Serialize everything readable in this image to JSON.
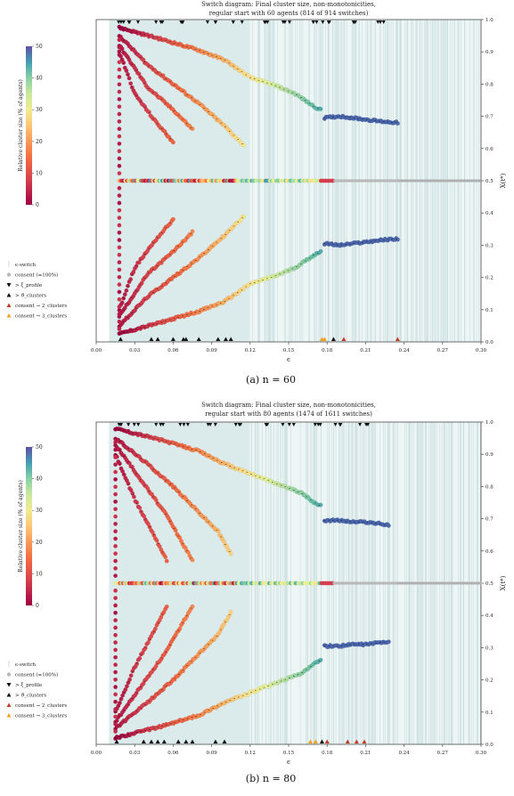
{
  "chart_data": [
    {
      "type": "scatter",
      "title_line1": "Switch diagram: Final cluster size, non-monotonicities,",
      "title_line2": "regular start with 60 agents (814 of 914 switches)",
      "xlabel": "ϵ",
      "ylabel": "X(t*)",
      "xlim": [
        0.0,
        0.3
      ],
      "ylim": [
        0.0,
        1.0
      ],
      "xticks": [
        "0.00",
        "0.03",
        "0.06",
        "0.09",
        "0.12",
        "0.15",
        "0.18",
        "0.21",
        "0.24",
        "0.27",
        "0.30"
      ],
      "yticks": [
        "0.0",
        "0.1",
        "0.2",
        "0.3",
        "0.4",
        "0.5",
        "0.6",
        "0.7",
        "0.8",
        "0.9",
        "1.0"
      ],
      "grid": false,
      "colorbar": {
        "label": "Relative cluster size (% of agents)",
        "range": [
          0,
          50
        ],
        "ticks": [
          "0",
          "10",
          "20",
          "30",
          "40",
          "50"
        ]
      },
      "legend": {
        "position": "left",
        "items": [
          {
            "label": "ϵ-switch",
            "marker": "line"
          },
          {
            "label": "consent (=100%)",
            "marker": "circle-gray"
          },
          {
            "label": "> ξ_profile",
            "marker": "triangle-down-black"
          },
          {
            "label": "> ϑ_clusters",
            "marker": "triangle-up-black"
          },
          {
            "label": "consent → 2_clusters",
            "marker": "triangle-up-red"
          },
          {
            "label": "consent → 3_clusters",
            "marker": "triangle-up-orange"
          }
        ]
      },
      "branches": [
        {
          "name": "upper",
          "x": [
            0.018,
            0.05,
            0.08,
            0.1,
            0.12,
            0.14,
            0.155,
            0.17,
            0.175
          ],
          "y": [
            0.975,
            0.94,
            0.905,
            0.875,
            0.82,
            0.795,
            0.77,
            0.73,
            0.72
          ]
        },
        {
          "name": "upper-2",
          "x": [
            0.018,
            0.04,
            0.06,
            0.08,
            0.1,
            0.115
          ],
          "y": [
            0.95,
            0.86,
            0.8,
            0.74,
            0.67,
            0.61
          ]
        },
        {
          "name": "upper-3",
          "x": [
            0.018,
            0.04,
            0.06,
            0.075
          ],
          "y": [
            0.92,
            0.79,
            0.72,
            0.66
          ]
        },
        {
          "name": "upper-4",
          "x": [
            0.018,
            0.03,
            0.045,
            0.06
          ],
          "y": [
            0.9,
            0.77,
            0.69,
            0.62
          ]
        },
        {
          "name": "upper-cluster",
          "x": [
            0.178,
            0.19,
            0.2,
            0.21,
            0.22,
            0.235
          ],
          "y": [
            0.695,
            0.7,
            0.695,
            0.69,
            0.685,
            0.68
          ]
        },
        {
          "name": "middle",
          "x": [
            0.018,
            0.05,
            0.08,
            0.1,
            0.12,
            0.15,
            0.18,
            0.2,
            0.24,
            0.27,
            0.3
          ],
          "y": [
            0.5,
            0.5,
            0.5,
            0.5,
            0.5,
            0.5,
            0.5,
            0.5,
            0.5,
            0.5,
            0.5
          ]
        },
        {
          "name": "lower",
          "x": [
            0.018,
            0.05,
            0.08,
            0.1,
            0.12,
            0.14,
            0.155,
            0.17,
            0.175
          ],
          "y": [
            0.025,
            0.06,
            0.095,
            0.125,
            0.18,
            0.205,
            0.23,
            0.27,
            0.28
          ]
        },
        {
          "name": "lower-2",
          "x": [
            0.018,
            0.04,
            0.06,
            0.08,
            0.1,
            0.115
          ],
          "y": [
            0.05,
            0.14,
            0.2,
            0.26,
            0.33,
            0.39
          ]
        },
        {
          "name": "lower-3",
          "x": [
            0.018,
            0.04,
            0.06,
            0.075
          ],
          "y": [
            0.08,
            0.21,
            0.28,
            0.34
          ]
        },
        {
          "name": "lower-4",
          "x": [
            0.018,
            0.03,
            0.045,
            0.06
          ],
          "y": [
            0.1,
            0.23,
            0.31,
            0.38
          ]
        },
        {
          "name": "lower-cluster",
          "x": [
            0.178,
            0.19,
            0.2,
            0.21,
            0.22,
            0.235
          ],
          "y": [
            0.305,
            0.3,
            0.305,
            0.31,
            0.315,
            0.32
          ]
        }
      ],
      "markers_top": [
        0.018,
        0.03,
        0.05,
        0.07,
        0.09,
        0.11,
        0.13,
        0.15,
        0.17,
        0.18,
        0.2,
        0.22
      ],
      "markers_bottom": [
        {
          "x": 0.019,
          "kind": "up-black"
        },
        {
          "x": 0.043,
          "kind": "up-black"
        },
        {
          "x": 0.048,
          "kind": "up-black"
        },
        {
          "x": 0.06,
          "kind": "up-black"
        },
        {
          "x": 0.068,
          "kind": "up-black"
        },
        {
          "x": 0.07,
          "kind": "up-black"
        },
        {
          "x": 0.08,
          "kind": "up-black"
        },
        {
          "x": 0.095,
          "kind": "up-black"
        },
        {
          "x": 0.101,
          "kind": "up-black"
        },
        {
          "x": 0.105,
          "kind": "up-black"
        },
        {
          "x": 0.176,
          "kind": "up-orange"
        },
        {
          "x": 0.178,
          "kind": "up-orange"
        },
        {
          "x": 0.185,
          "kind": "up-black"
        },
        {
          "x": 0.193,
          "kind": "up-red"
        },
        {
          "x": 0.235,
          "kind": "up-red"
        }
      ],
      "caption": "(a) n = 60"
    },
    {
      "type": "scatter",
      "title_line1": "Switch diagram: Final cluster size, non-monotonicities,",
      "title_line2": "regular start with 80 agents (1474 of 1611 switches)",
      "xlabel": "ϵ",
      "ylabel": "X(t*)",
      "xlim": [
        0.0,
        0.3
      ],
      "ylim": [
        0.0,
        1.0
      ],
      "xticks": [
        "0.00",
        "0.03",
        "0.06",
        "0.09",
        "0.12",
        "0.15",
        "0.18",
        "0.21",
        "0.24",
        "0.27",
        "0.30"
      ],
      "yticks": [
        "0.0",
        "0.1",
        "0.2",
        "0.3",
        "0.4",
        "0.5",
        "0.6",
        "0.7",
        "0.8",
        "0.9",
        "1.0"
      ],
      "grid": false,
      "colorbar": {
        "label": "Relative cluster size (% of agents)",
        "range": [
          0,
          50
        ],
        "ticks": [
          "0",
          "10",
          "20",
          "30",
          "40",
          "50"
        ]
      },
      "legend": {
        "position": "left",
        "items": [
          {
            "label": "ϵ-switch",
            "marker": "line"
          },
          {
            "label": "consent (=100%)",
            "marker": "circle-gray"
          },
          {
            "label": "> ξ_profile",
            "marker": "triangle-down-black"
          },
          {
            "label": "> ϑ_clusters",
            "marker": "triangle-up-black"
          },
          {
            "label": "consent → 2_clusters",
            "marker": "triangle-up-red"
          },
          {
            "label": "consent → 3_clusters",
            "marker": "triangle-up-orange"
          }
        ]
      },
      "branches": [
        {
          "name": "upper",
          "x": [
            0.015,
            0.05,
            0.08,
            0.1,
            0.12,
            0.14,
            0.16,
            0.17,
            0.175
          ],
          "y": [
            0.98,
            0.945,
            0.91,
            0.87,
            0.84,
            0.81,
            0.78,
            0.75,
            0.74
          ]
        },
        {
          "name": "upper-2",
          "x": [
            0.015,
            0.04,
            0.06,
            0.08,
            0.095,
            0.105
          ],
          "y": [
            0.95,
            0.87,
            0.8,
            0.72,
            0.66,
            0.59
          ]
        },
        {
          "name": "upper-3",
          "x": [
            0.015,
            0.035,
            0.055,
            0.075
          ],
          "y": [
            0.93,
            0.82,
            0.71,
            0.57
          ]
        },
        {
          "name": "upper-4",
          "x": [
            0.015,
            0.03,
            0.045,
            0.055
          ],
          "y": [
            0.9,
            0.76,
            0.65,
            0.57
          ]
        },
        {
          "name": "upper-cluster",
          "x": [
            0.178,
            0.19,
            0.2,
            0.21,
            0.22,
            0.228
          ],
          "y": [
            0.695,
            0.695,
            0.69,
            0.69,
            0.685,
            0.68
          ]
        },
        {
          "name": "middle",
          "x": [
            0.015,
            0.05,
            0.08,
            0.1,
            0.12,
            0.15,
            0.18,
            0.2,
            0.23,
            0.27,
            0.3
          ],
          "y": [
            0.5,
            0.5,
            0.5,
            0.5,
            0.5,
            0.5,
            0.5,
            0.5,
            0.5,
            0.5,
            0.5
          ]
        },
        {
          "name": "lower",
          "x": [
            0.015,
            0.05,
            0.08,
            0.1,
            0.12,
            0.14,
            0.16,
            0.17,
            0.175
          ],
          "y": [
            0.02,
            0.055,
            0.09,
            0.13,
            0.16,
            0.19,
            0.22,
            0.25,
            0.26
          ]
        },
        {
          "name": "lower-2",
          "x": [
            0.015,
            0.04,
            0.06,
            0.08,
            0.095,
            0.105
          ],
          "y": [
            0.05,
            0.13,
            0.2,
            0.28,
            0.34,
            0.41
          ]
        },
        {
          "name": "lower-3",
          "x": [
            0.015,
            0.035,
            0.055,
            0.075
          ],
          "y": [
            0.07,
            0.18,
            0.29,
            0.43
          ]
        },
        {
          "name": "lower-4",
          "x": [
            0.015,
            0.03,
            0.045,
            0.055
          ],
          "y": [
            0.1,
            0.24,
            0.35,
            0.43
          ]
        },
        {
          "name": "lower-cluster",
          "x": [
            0.178,
            0.19,
            0.2,
            0.21,
            0.22,
            0.228
          ],
          "y": [
            0.305,
            0.305,
            0.31,
            0.31,
            0.315,
            0.32
          ]
        }
      ],
      "markers_top": [
        0.016,
        0.03,
        0.05,
        0.07,
        0.09,
        0.11,
        0.13,
        0.15,
        0.17,
        0.19,
        0.21
      ],
      "markers_bottom": [
        {
          "x": 0.016,
          "kind": "up-black"
        },
        {
          "x": 0.037,
          "kind": "up-black"
        },
        {
          "x": 0.043,
          "kind": "up-black"
        },
        {
          "x": 0.048,
          "kind": "up-black"
        },
        {
          "x": 0.053,
          "kind": "up-black"
        },
        {
          "x": 0.064,
          "kind": "up-black"
        },
        {
          "x": 0.07,
          "kind": "up-black"
        },
        {
          "x": 0.075,
          "kind": "up-black"
        },
        {
          "x": 0.093,
          "kind": "up-black"
        },
        {
          "x": 0.1,
          "kind": "up-black"
        },
        {
          "x": 0.167,
          "kind": "up-orange"
        },
        {
          "x": 0.171,
          "kind": "up-orange"
        },
        {
          "x": 0.176,
          "kind": "up-black"
        },
        {
          "x": 0.18,
          "kind": "up-red"
        },
        {
          "x": 0.196,
          "kind": "up-red"
        },
        {
          "x": 0.203,
          "kind": "up-red"
        },
        {
          "x": 0.209,
          "kind": "up-red"
        }
      ],
      "caption": "(b) n = 80"
    }
  ]
}
